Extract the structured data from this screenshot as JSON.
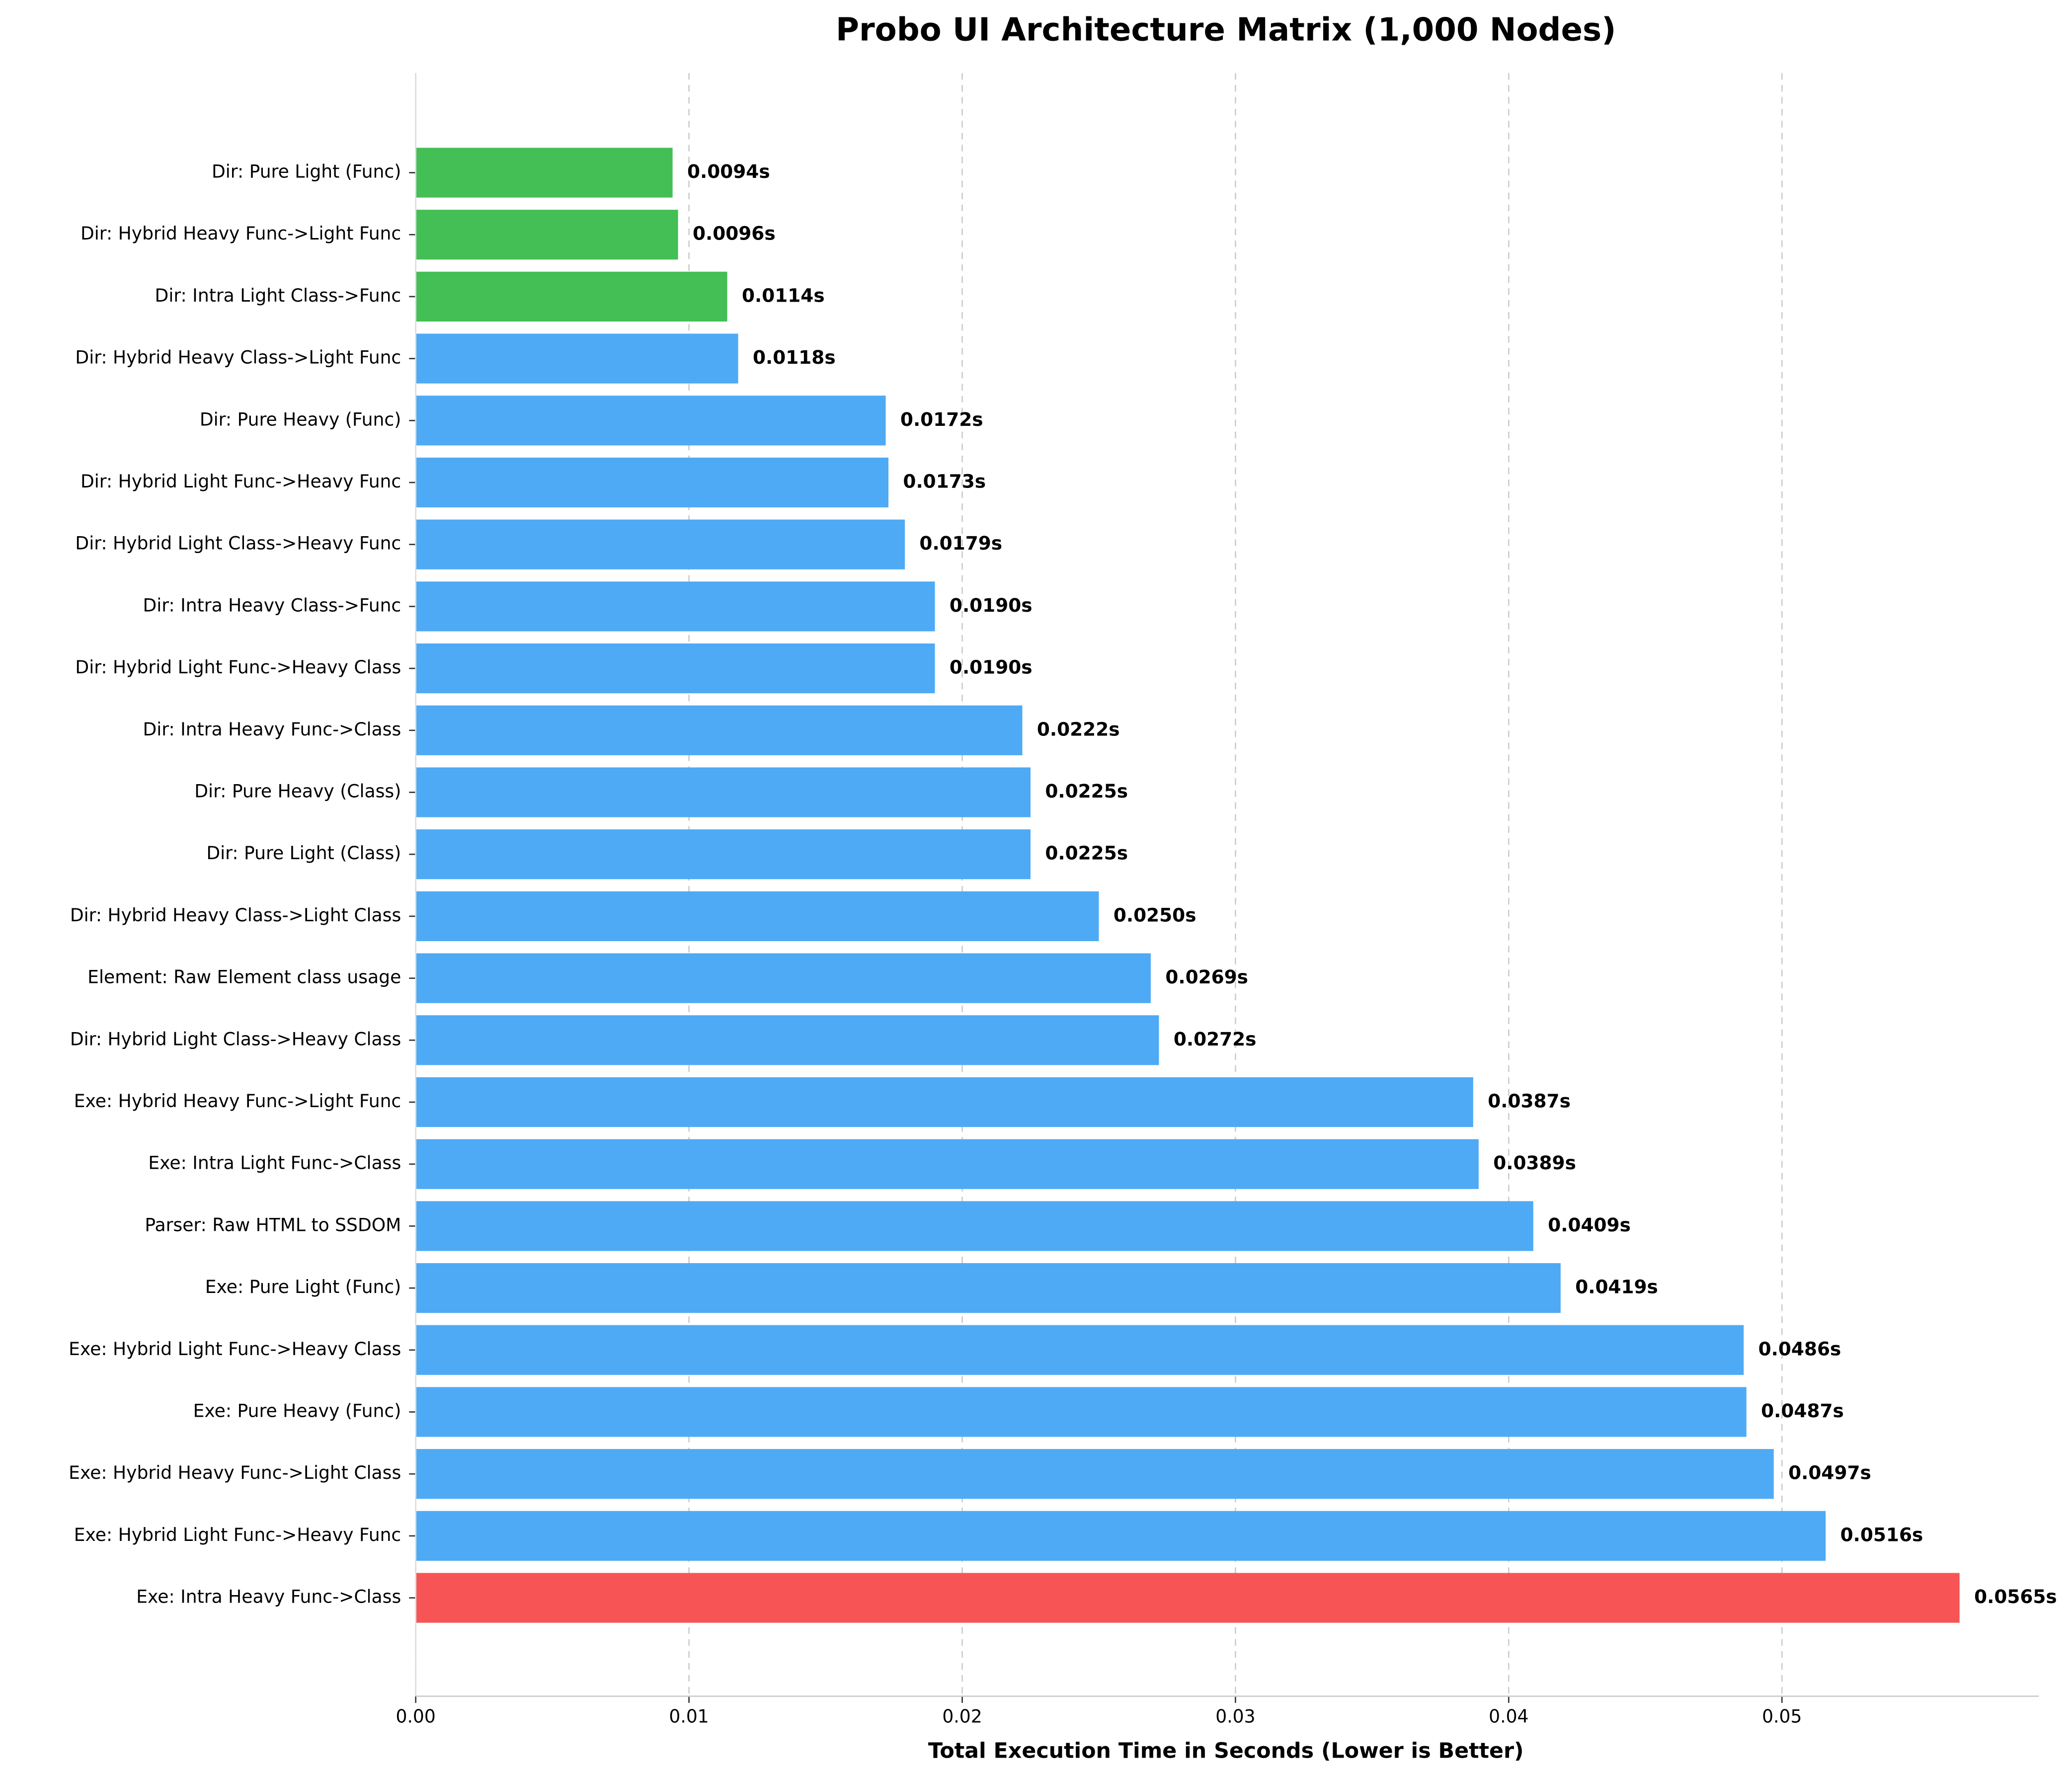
{
  "chart_data": {
    "type": "barh",
    "title": "Probo UI Architecture Matrix (1,000 Nodes)",
    "x_label": "Total Execution Time in Seconds (Lower is Better)",
    "categories": [
      "Dir: Pure Light (Func)",
      "Dir: Hybrid Heavy Func->Light Func",
      "Dir: Intra Light Class->Func",
      "Dir: Hybrid Heavy Class->Light Func",
      "Dir: Pure Heavy (Func)",
      "Dir: Hybrid Light Func->Heavy Func",
      "Dir: Hybrid Light Class->Heavy Func",
      "Dir: Intra Heavy Class->Func",
      "Dir: Hybrid Light Func->Heavy Class",
      "Dir: Intra Heavy Func->Class",
      "Dir: Pure Heavy (Class)",
      "Dir: Pure Light (Class)",
      "Dir: Hybrid Heavy Class->Light Class",
      "Element: Raw Element class usage",
      "Dir: Hybrid Light Class->Heavy Class",
      "Exe: Hybrid Heavy Func->Light Func",
      "Exe: Intra Light Func->Class",
      "Parser: Raw HTML to SSDOM",
      "Exe: Pure Light (Func)",
      "Exe: Hybrid Light Func->Heavy Class",
      "Exe: Pure Heavy (Func)",
      "Exe: Hybrid Heavy Func->Light Class",
      "Exe: Hybrid Light Func->Heavy Func",
      "Exe: Intra Heavy Func->Class"
    ],
    "values": [
      0.0094,
      0.0096,
      0.0114,
      0.0118,
      0.0172,
      0.0173,
      0.0179,
      0.019,
      0.019,
      0.0222,
      0.0225,
      0.0225,
      0.025,
      0.0269,
      0.0272,
      0.0387,
      0.0389,
      0.0409,
      0.0419,
      0.0486,
      0.0487,
      0.0497,
      0.0516,
      0.0565
    ],
    "value_labels": [
      "0.0094s",
      "0.0096s",
      "0.0114s",
      "0.0118s",
      "0.0172s",
      "0.0173s",
      "0.0179s",
      "0.0190s",
      "0.0190s",
      "0.0222s",
      "0.0225s",
      "0.0225s",
      "0.0250s",
      "0.0269s",
      "0.0272s",
      "0.0387s",
      "0.0389s",
      "0.0409s",
      "0.0419s",
      "0.0486s",
      "0.0487s",
      "0.0497s",
      "0.0516s",
      "0.0565s"
    ],
    "colors": [
      "#43bf55",
      "#43bf55",
      "#43bf55",
      "#4eaaf5",
      "#4eaaf5",
      "#4eaaf5",
      "#4eaaf5",
      "#4eaaf5",
      "#4eaaf5",
      "#4eaaf5",
      "#4eaaf5",
      "#4eaaf5",
      "#4eaaf5",
      "#4eaaf5",
      "#4eaaf5",
      "#4eaaf5",
      "#4eaaf5",
      "#4eaaf5",
      "#4eaaf5",
      "#4eaaf5",
      "#4eaaf5",
      "#4eaaf5",
      "#4eaaf5",
      "#f75555"
    ],
    "xlim": [
      0,
      0.0594
    ],
    "xticks": [
      {
        "value": 0,
        "label": "0.00"
      },
      0.01,
      0.02,
      0.03,
      0.04,
      0.05
    ],
    "grid": true
  }
}
